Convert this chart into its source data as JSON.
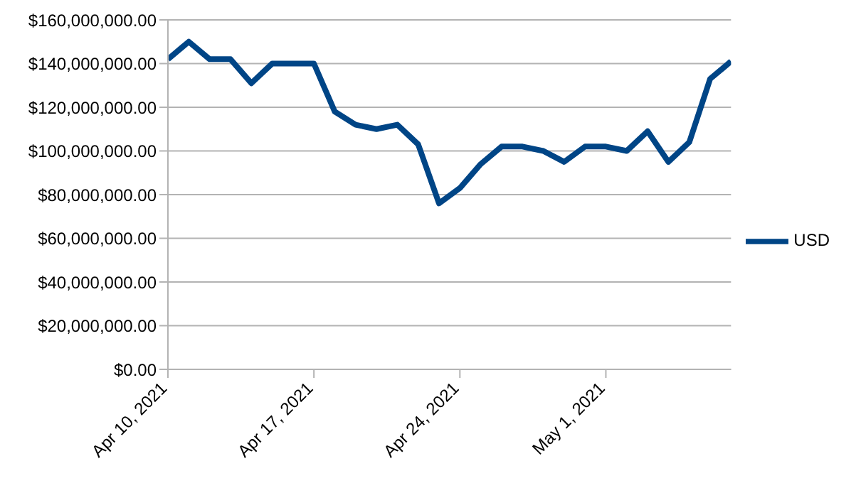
{
  "chart_data": {
    "type": "line",
    "x": [
      "2021-04-10",
      "2021-04-11",
      "2021-04-12",
      "2021-04-13",
      "2021-04-14",
      "2021-04-15",
      "2021-04-16",
      "2021-04-17",
      "2021-04-18",
      "2021-04-19",
      "2021-04-20",
      "2021-04-21",
      "2021-04-22",
      "2021-04-23",
      "2021-04-24",
      "2021-04-25",
      "2021-04-26",
      "2021-04-27",
      "2021-04-28",
      "2021-04-29",
      "2021-04-30",
      "2021-05-01",
      "2021-05-02",
      "2021-05-03",
      "2021-05-04",
      "2021-05-05",
      "2021-05-06",
      "2021-05-07"
    ],
    "series": [
      {
        "name": "USD",
        "color": "#004586",
        "values": [
          142000000,
          150000000,
          142000000,
          142000000,
          131000000,
          140000000,
          140000000,
          140000000,
          118000000,
          112000000,
          110000000,
          112000000,
          103000000,
          76000000,
          83000000,
          94000000,
          102000000,
          102000000,
          100000000,
          95000000,
          102000000,
          102000000,
          100000000,
          109000000,
          95000000,
          104000000,
          133000000,
          141000000
        ]
      }
    ],
    "xlim": [
      "2021-04-10",
      "2021-05-07"
    ],
    "xticks": [
      {
        "value": "2021-04-10",
        "label": "Apr 10, 2021"
      },
      {
        "value": "2021-04-17",
        "label": "Apr 17, 2021"
      },
      {
        "value": "2021-04-24",
        "label": "Apr 24, 2021"
      },
      {
        "value": "2021-05-01",
        "label": "May 1, 2021"
      }
    ],
    "ylim": [
      0,
      160000000
    ],
    "yticks": [
      {
        "value": 0,
        "label": "$0.00"
      },
      {
        "value": 20000000,
        "label": "$20,000,000.00"
      },
      {
        "value": 40000000,
        "label": "$40,000,000.00"
      },
      {
        "value": 60000000,
        "label": "$60,000,000.00"
      },
      {
        "value": 80000000,
        "label": "$80,000,000.00"
      },
      {
        "value": 100000000,
        "label": "$100,000,000.00"
      },
      {
        "value": 120000000,
        "label": "$120,000,000.00"
      },
      {
        "value": 140000000,
        "label": "$140,000,000.00"
      },
      {
        "value": 160000000,
        "label": "$160,000,000.00"
      }
    ],
    "grid": "y",
    "legend": "right",
    "marker": "none",
    "line_style": "solid"
  }
}
